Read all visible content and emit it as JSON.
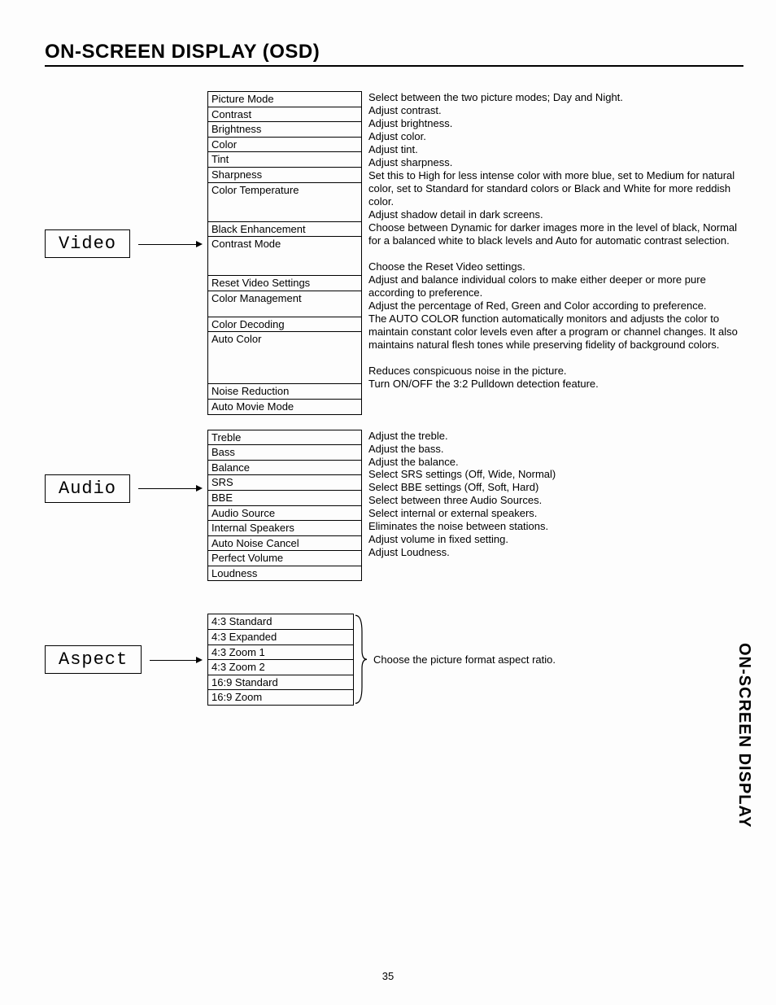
{
  "page": {
    "title": "ON-SCREEN DISPLAY (OSD)",
    "side_tab": "ON-SCREEN DISPLAY",
    "number": "35"
  },
  "video": {
    "label": "Video",
    "items": [
      {
        "name": "Picture Mode",
        "desc": "Select between the two picture modes; Day and Night."
      },
      {
        "name": "Contrast",
        "desc": "Adjust contrast."
      },
      {
        "name": "Brightness",
        "desc": "Adjust brightness."
      },
      {
        "name": "Color",
        "desc": "Adjust color."
      },
      {
        "name": "Tint",
        "desc": "Adjust tint."
      },
      {
        "name": "Sharpness",
        "desc": "Adjust sharpness."
      },
      {
        "name": "Color Temperature",
        "desc": "Set this to High for less intense color with more blue, set to Medium for natural color, set to Standard for standard colors or Black and White for more reddish color.",
        "tall": "tall"
      },
      {
        "name": "Black Enhancement",
        "desc": "Adjust shadow detail in dark screens."
      },
      {
        "name": "Contrast Mode",
        "desc": "Choose between Dynamic for darker images more in the level of black, Normal for a balanced white to black levels and Auto for automatic contrast selection.",
        "tall": "tall"
      },
      {
        "name": "Reset Video Settings",
        "desc": "Choose the Reset Video settings."
      },
      {
        "name": "Color Management",
        "desc": "Adjust and balance individual colors to make either deeper or more pure according to preference.",
        "tall": "tall2"
      },
      {
        "name": "Color Decoding",
        "desc": "Adjust the percentage of Red, Green and Color according to preference."
      },
      {
        "name": "Auto Color",
        "desc": "The AUTO COLOR function automatically monitors and adjusts the color to maintain constant color levels even after a program or channel changes. It also maintains natural flesh tones while preserving fidelity of background colors.",
        "tall": "tall4"
      },
      {
        "name": "Noise Reduction",
        "desc": "Reduces conspicuous noise in the picture."
      },
      {
        "name": "Auto Movie Mode",
        "desc": "Turn ON/OFF the 3:2 Pulldown detection feature."
      }
    ]
  },
  "audio": {
    "label": "Audio",
    "items": [
      {
        "name": "Treble",
        "desc": "Adjust the treble."
      },
      {
        "name": "Bass",
        "desc": "Adjust the bass."
      },
      {
        "name": "Balance",
        "desc": "Adjust the balance."
      },
      {
        "name": "SRS",
        "desc": "Select SRS settings (Off, Wide, Normal)"
      },
      {
        "name": "BBE",
        "desc": "Select BBE settings (Off, Soft, Hard)"
      },
      {
        "name": "Audio Source",
        "desc": "Select between three Audio Sources."
      },
      {
        "name": "Internal Speakers",
        "desc": "Select internal or external speakers."
      },
      {
        "name": "Auto Noise Cancel",
        "desc": "Eliminates the noise between stations."
      },
      {
        "name": "Perfect Volume",
        "desc": "Adjust volume in fixed setting."
      },
      {
        "name": "Loudness",
        "desc": "Adjust Loudness."
      }
    ]
  },
  "aspect": {
    "label": "Aspect",
    "desc": "Choose the picture format aspect ratio.",
    "items": [
      "4:3 Standard",
      "4:3 Expanded",
      "4:3 Zoom 1",
      "4:3 Zoom 2",
      "16:9 Standard",
      "16:9 Zoom"
    ]
  }
}
